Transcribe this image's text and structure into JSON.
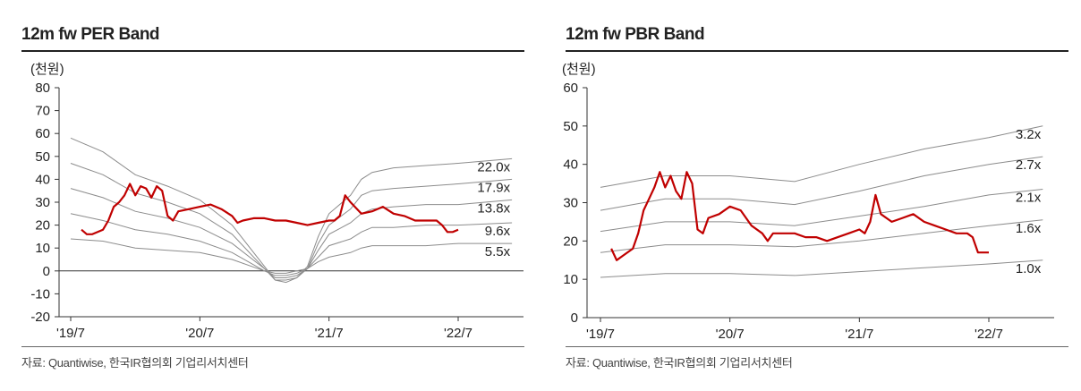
{
  "chart_data": [
    {
      "type": "line",
      "title": "12m fw PER Band",
      "unit_label": "(천원)",
      "source": "자료: Quantiwise, 한국IR협의회 기업리서치센터",
      "ylim": [
        -20,
        80
      ],
      "yticks": [
        -20,
        -10,
        0,
        10,
        20,
        30,
        40,
        50,
        60,
        70,
        80
      ],
      "xticks": [
        {
          "label": "'19/7",
          "t": 0
        },
        {
          "label": "'20/7",
          "t": 12
        },
        {
          "label": "'21/7",
          "t": 24
        },
        {
          "label": "'22/7",
          "t": 36
        }
      ],
      "x_range": [
        0,
        41
      ],
      "grid": false,
      "band_color": "#8c8c8c",
      "price_color": "#c00000",
      "bands": [
        {
          "name": "22.0x",
          "points": [
            [
              0,
              58
            ],
            [
              3,
              52
            ],
            [
              6,
              42
            ],
            [
              9,
              37
            ],
            [
              12,
              31
            ],
            [
              15,
              20
            ],
            [
              18,
              2
            ],
            [
              19,
              -4
            ],
            [
              20,
              -5
            ],
            [
              21,
              -3
            ],
            [
              22,
              2
            ],
            [
              23,
              15
            ],
            [
              24,
              25
            ],
            [
              26,
              33
            ],
            [
              27,
              40
            ],
            [
              28,
              43
            ],
            [
              30,
              45
            ],
            [
              33,
              46
            ],
            [
              36,
              47
            ],
            [
              41,
              49
            ]
          ]
        },
        {
          "name": "17.9x",
          "points": [
            [
              0,
              47
            ],
            [
              3,
              42
            ],
            [
              6,
              34
            ],
            [
              9,
              30
            ],
            [
              12,
              25
            ],
            [
              15,
              16
            ],
            [
              18,
              1
            ],
            [
              19,
              -4
            ],
            [
              20,
              -4
            ],
            [
              21,
              -3
            ],
            [
              22,
              1
            ],
            [
              23,
              12
            ],
            [
              24,
              20
            ],
            [
              26,
              27
            ],
            [
              27,
              33
            ],
            [
              28,
              35
            ],
            [
              30,
              36
            ],
            [
              33,
              37
            ],
            [
              36,
              38
            ],
            [
              41,
              40
            ]
          ]
        },
        {
          "name": "13.8x",
          "points": [
            [
              0,
              36
            ],
            [
              3,
              32
            ],
            [
              6,
              26
            ],
            [
              9,
              23
            ],
            [
              12,
              19
            ],
            [
              15,
              12
            ],
            [
              18,
              1
            ],
            [
              19,
              -3
            ],
            [
              20,
              -3
            ],
            [
              21,
              -2
            ],
            [
              22,
              1
            ],
            [
              23,
              9
            ],
            [
              24,
              16
            ],
            [
              26,
              21
            ],
            [
              27,
              25
            ],
            [
              28,
              27
            ],
            [
              30,
              28
            ],
            [
              33,
              29
            ],
            [
              36,
              29
            ],
            [
              41,
              31
            ]
          ]
        },
        {
          "name": "9.6x",
          "points": [
            [
              0,
              25
            ],
            [
              3,
              22
            ],
            [
              6,
              18
            ],
            [
              9,
              16
            ],
            [
              12,
              13
            ],
            [
              15,
              8
            ],
            [
              18,
              0
            ],
            [
              19,
              -2
            ],
            [
              20,
              -2
            ],
            [
              21,
              -1
            ],
            [
              22,
              1
            ],
            [
              23,
              6
            ],
            [
              24,
              11
            ],
            [
              26,
              14
            ],
            [
              27,
              17
            ],
            [
              28,
              19
            ],
            [
              30,
              19
            ],
            [
              33,
              20
            ],
            [
              36,
              20
            ],
            [
              41,
              21
            ]
          ]
        },
        {
          "name": "5.5x",
          "points": [
            [
              0,
              14
            ],
            [
              3,
              13
            ],
            [
              6,
              10
            ],
            [
              9,
              9
            ],
            [
              12,
              8
            ],
            [
              15,
              5
            ],
            [
              18,
              0
            ],
            [
              19,
              -1
            ],
            [
              20,
              -1
            ],
            [
              21,
              0
            ],
            [
              22,
              1
            ],
            [
              23,
              4
            ],
            [
              24,
              6
            ],
            [
              26,
              8
            ],
            [
              27,
              10
            ],
            [
              28,
              11
            ],
            [
              30,
              11
            ],
            [
              33,
              11
            ],
            [
              36,
              12
            ],
            [
              41,
              12
            ]
          ]
        }
      ],
      "price": {
        "points": [
          [
            1,
            18
          ],
          [
            1.5,
            16
          ],
          [
            2,
            16
          ],
          [
            3,
            18
          ],
          [
            3.5,
            22
          ],
          [
            4,
            28
          ],
          [
            4.5,
            30
          ],
          [
            5,
            33
          ],
          [
            5.5,
            38
          ],
          [
            6,
            33
          ],
          [
            6.5,
            37
          ],
          [
            7,
            36
          ],
          [
            7.5,
            32
          ],
          [
            8,
            37
          ],
          [
            8.5,
            35
          ],
          [
            9,
            24
          ],
          [
            9.5,
            22
          ],
          [
            10,
            26
          ],
          [
            11,
            27
          ],
          [
            12,
            28
          ],
          [
            13,
            29
          ],
          [
            14,
            27
          ],
          [
            15,
            24
          ],
          [
            15.5,
            21
          ],
          [
            16,
            22
          ],
          [
            17,
            23
          ],
          [
            18,
            23
          ],
          [
            19,
            22
          ],
          [
            20,
            22
          ],
          [
            21,
            21
          ],
          [
            22,
            20
          ],
          [
            23,
            21
          ],
          [
            24,
            22
          ],
          [
            24.5,
            22
          ],
          [
            25,
            24
          ],
          [
            25.5,
            33
          ],
          [
            26,
            30
          ],
          [
            27,
            25
          ],
          [
            28,
            26
          ],
          [
            29,
            28
          ],
          [
            30,
            25
          ],
          [
            31,
            24
          ],
          [
            32,
            22
          ],
          [
            33,
            22
          ],
          [
            34,
            22
          ],
          [
            34.5,
            20
          ],
          [
            35,
            17
          ],
          [
            35.5,
            17
          ],
          [
            36,
            18
          ]
        ]
      }
    },
    {
      "type": "line",
      "title": "12m fw PBR Band",
      "unit_label": "(천원)",
      "source": "자료: Quantiwise, 한국IR협의회 기업리서치센터",
      "ylim": [
        0,
        60
      ],
      "yticks": [
        0,
        10,
        20,
        30,
        40,
        50,
        60
      ],
      "xticks": [
        {
          "label": "'19/7",
          "t": 0
        },
        {
          "label": "'20/7",
          "t": 12
        },
        {
          "label": "'21/7",
          "t": 24
        },
        {
          "label": "'22/7",
          "t": 36
        }
      ],
      "x_range": [
        0,
        41
      ],
      "grid": false,
      "band_color": "#8c8c8c",
      "price_color": "#c00000",
      "bands": [
        {
          "name": "3.2x",
          "points": [
            [
              0,
              34
            ],
            [
              6,
              37
            ],
            [
              12,
              37
            ],
            [
              18,
              35.5
            ],
            [
              24,
              40
            ],
            [
              30,
              44
            ],
            [
              36,
              47
            ],
            [
              41,
              50
            ]
          ]
        },
        {
          "name": "2.7x",
          "points": [
            [
              0,
              28
            ],
            [
              6,
              31
            ],
            [
              12,
              31
            ],
            [
              18,
              29.5
            ],
            [
              24,
              33
            ],
            [
              30,
              37
            ],
            [
              36,
              40
            ],
            [
              41,
              42
            ]
          ]
        },
        {
          "name": "2.1x",
          "points": [
            [
              0,
              22.5
            ],
            [
              6,
              25
            ],
            [
              12,
              25
            ],
            [
              18,
              24
            ],
            [
              24,
              26.5
            ],
            [
              30,
              29
            ],
            [
              36,
              32
            ],
            [
              41,
              33.5
            ]
          ]
        },
        {
          "name": "1.6x",
          "points": [
            [
              0,
              17
            ],
            [
              6,
              19
            ],
            [
              12,
              19
            ],
            [
              18,
              18.5
            ],
            [
              24,
              20
            ],
            [
              30,
              22
            ],
            [
              36,
              24
            ],
            [
              41,
              25.5
            ]
          ]
        },
        {
          "name": "1.0x",
          "points": [
            [
              0,
              10.5
            ],
            [
              6,
              11.5
            ],
            [
              12,
              11.5
            ],
            [
              18,
              11
            ],
            [
              24,
              12
            ],
            [
              30,
              13
            ],
            [
              36,
              14
            ],
            [
              41,
              15
            ]
          ]
        }
      ],
      "price": {
        "points": [
          [
            1,
            18
          ],
          [
            1.5,
            15
          ],
          [
            2,
            16
          ],
          [
            3,
            18
          ],
          [
            3.5,
            22
          ],
          [
            4,
            28
          ],
          [
            4.5,
            31
          ],
          [
            5,
            34
          ],
          [
            5.5,
            38
          ],
          [
            6,
            34
          ],
          [
            6.5,
            37
          ],
          [
            7,
            33
          ],
          [
            7.5,
            31
          ],
          [
            8,
            38
          ],
          [
            8.5,
            35
          ],
          [
            9,
            23
          ],
          [
            9.5,
            22
          ],
          [
            10,
            26
          ],
          [
            11,
            27
          ],
          [
            12,
            29
          ],
          [
            13,
            28
          ],
          [
            14,
            24
          ],
          [
            15,
            22
          ],
          [
            15.5,
            20
          ],
          [
            16,
            22
          ],
          [
            17,
            22
          ],
          [
            18,
            22
          ],
          [
            19,
            21
          ],
          [
            20,
            21
          ],
          [
            21,
            20
          ],
          [
            22,
            21
          ],
          [
            23,
            22
          ],
          [
            24,
            23
          ],
          [
            24.5,
            22
          ],
          [
            25,
            25
          ],
          [
            25.5,
            32
          ],
          [
            26,
            27
          ],
          [
            27,
            25
          ],
          [
            28,
            26
          ],
          [
            29,
            27
          ],
          [
            30,
            25
          ],
          [
            31,
            24
          ],
          [
            32,
            23
          ],
          [
            33,
            22
          ],
          [
            34,
            22
          ],
          [
            34.5,
            21
          ],
          [
            35,
            17
          ],
          [
            35.5,
            17
          ],
          [
            36,
            17
          ]
        ]
      }
    }
  ]
}
